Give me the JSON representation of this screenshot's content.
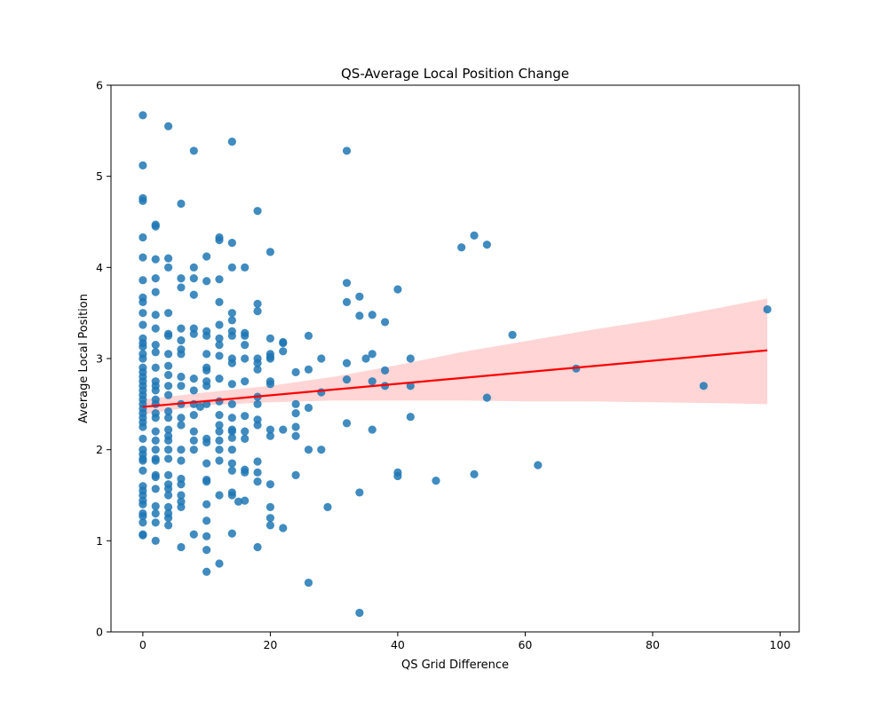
{
  "chart_data": {
    "type": "scatter",
    "title": "QS-Average Local Position Change",
    "xlabel": "QS Grid Difference",
    "ylabel": "Average Local Position",
    "xlim": [
      -5,
      103
    ],
    "ylim": [
      0,
      6
    ],
    "xticks": [
      0,
      20,
      40,
      60,
      80,
      100
    ],
    "yticks": [
      0,
      1,
      2,
      3,
      4,
      5,
      6
    ],
    "grid": false,
    "legend": "none",
    "colors": {
      "points": "#1f77b4",
      "regression": "#ff0000",
      "ci_band": "#ffb3b3"
    },
    "regression": {
      "x": [
        0,
        98
      ],
      "y": [
        2.47,
        3.09
      ]
    },
    "confidence_band": {
      "x": [
        0,
        10,
        20,
        30,
        40,
        50,
        60,
        70,
        80,
        90,
        98
      ],
      "lower": [
        2.39,
        2.49,
        2.52,
        2.54,
        2.54,
        2.54,
        2.53,
        2.53,
        2.52,
        2.51,
        2.5
      ],
      "upper": [
        2.55,
        2.63,
        2.7,
        2.8,
        2.93,
        3.07,
        3.19,
        3.31,
        3.42,
        3.55,
        3.66
      ]
    },
    "points": [
      [
        0,
        5.67
      ],
      [
        0,
        5.12
      ],
      [
        0,
        4.76
      ],
      [
        0,
        4.73
      ],
      [
        0,
        4.33
      ],
      [
        0,
        4.11
      ],
      [
        0,
        3.86
      ],
      [
        0,
        3.67
      ],
      [
        0,
        3.62
      ],
      [
        0,
        3.5
      ],
      [
        0,
        3.37
      ],
      [
        0,
        3.22
      ],
      [
        0,
        3.17
      ],
      [
        0,
        3.13
      ],
      [
        0,
        3.05
      ],
      [
        0,
        3.0
      ],
      [
        0,
        2.9
      ],
      [
        0,
        2.85
      ],
      [
        0,
        2.8
      ],
      [
        0,
        2.75
      ],
      [
        0,
        2.7
      ],
      [
        0,
        2.65
      ],
      [
        0,
        2.6
      ],
      [
        0,
        2.55
      ],
      [
        0,
        2.5
      ],
      [
        0,
        2.45
      ],
      [
        0,
        2.4
      ],
      [
        0,
        2.35
      ],
      [
        0,
        2.3
      ],
      [
        0,
        2.25
      ],
      [
        0,
        2.12
      ],
      [
        0,
        2.0
      ],
      [
        0,
        1.95
      ],
      [
        0,
        1.9
      ],
      [
        0,
        1.88
      ],
      [
        0,
        1.77
      ],
      [
        0,
        1.6
      ],
      [
        0,
        1.55
      ],
      [
        0,
        1.5
      ],
      [
        0,
        1.44
      ],
      [
        0,
        1.4
      ],
      [
        0,
        1.3
      ],
      [
        0,
        1.27
      ],
      [
        0,
        1.2
      ],
      [
        0,
        1.07
      ],
      [
        0,
        1.06
      ],
      [
        2,
        4.47
      ],
      [
        2,
        4.45
      ],
      [
        2,
        4.09
      ],
      [
        2,
        3.88
      ],
      [
        2,
        3.73
      ],
      [
        2,
        3.48
      ],
      [
        2,
        3.33
      ],
      [
        2,
        3.15
      ],
      [
        2,
        3.07
      ],
      [
        2,
        2.9
      ],
      [
        2,
        2.75
      ],
      [
        2,
        2.7
      ],
      [
        2,
        2.65
      ],
      [
        2,
        2.55
      ],
      [
        2,
        2.5
      ],
      [
        2,
        2.4
      ],
      [
        2,
        2.35
      ],
      [
        2,
        2.2
      ],
      [
        2,
        2.1
      ],
      [
        2,
        2.0
      ],
      [
        2,
        1.9
      ],
      [
        2,
        1.88
      ],
      [
        2,
        1.72
      ],
      [
        2,
        1.7
      ],
      [
        2,
        1.57
      ],
      [
        2,
        1.38
      ],
      [
        2,
        1.3
      ],
      [
        2,
        1.2
      ],
      [
        2,
        1.0
      ],
      [
        4,
        5.55
      ],
      [
        4,
        4.1
      ],
      [
        4,
        4.0
      ],
      [
        4,
        3.5
      ],
      [
        4,
        3.27
      ],
      [
        4,
        3.25
      ],
      [
        4,
        3.05
      ],
      [
        4,
        2.92
      ],
      [
        4,
        2.82
      ],
      [
        4,
        2.7
      ],
      [
        4,
        2.6
      ],
      [
        4,
        2.42
      ],
      [
        4,
        2.35
      ],
      [
        4,
        2.22
      ],
      [
        4,
        2.15
      ],
      [
        4,
        2.1
      ],
      [
        4,
        2.0
      ],
      [
        4,
        1.9
      ],
      [
        4,
        1.72
      ],
      [
        4,
        1.62
      ],
      [
        4,
        1.57
      ],
      [
        4,
        1.5
      ],
      [
        4,
        1.37
      ],
      [
        4,
        1.3
      ],
      [
        4,
        1.25
      ],
      [
        4,
        1.17
      ],
      [
        6,
        4.7
      ],
      [
        6,
        3.88
      ],
      [
        6,
        3.78
      ],
      [
        6,
        3.33
      ],
      [
        6,
        3.2
      ],
      [
        6,
        3.1
      ],
      [
        6,
        3.05
      ],
      [
        6,
        2.8
      ],
      [
        6,
        2.7
      ],
      [
        6,
        2.5
      ],
      [
        6,
        2.35
      ],
      [
        6,
        2.27
      ],
      [
        6,
        2.0
      ],
      [
        6,
        1.88
      ],
      [
        6,
        1.68
      ],
      [
        6,
        1.62
      ],
      [
        6,
        1.5
      ],
      [
        6,
        1.43
      ],
      [
        6,
        1.37
      ],
      [
        6,
        0.93
      ],
      [
        8,
        5.28
      ],
      [
        8,
        4.0
      ],
      [
        8,
        3.88
      ],
      [
        8,
        3.7
      ],
      [
        8,
        3.33
      ],
      [
        8,
        3.27
      ],
      [
        8,
        2.78
      ],
      [
        8,
        2.65
      ],
      [
        8,
        2.5
      ],
      [
        8,
        2.38
      ],
      [
        8,
        2.2
      ],
      [
        8,
        2.1
      ],
      [
        8,
        2.0
      ],
      [
        8,
        1.07
      ],
      [
        9,
        2.47
      ],
      [
        10,
        4.12
      ],
      [
        10,
        3.85
      ],
      [
        10,
        3.3
      ],
      [
        10,
        3.25
      ],
      [
        10,
        3.05
      ],
      [
        10,
        2.9
      ],
      [
        10,
        2.87
      ],
      [
        10,
        2.75
      ],
      [
        10,
        2.7
      ],
      [
        10,
        2.5
      ],
      [
        10,
        2.12
      ],
      [
        10,
        2.08
      ],
      [
        10,
        1.85
      ],
      [
        10,
        1.67
      ],
      [
        10,
        1.65
      ],
      [
        10,
        1.4
      ],
      [
        10,
        1.22
      ],
      [
        10,
        1.05
      ],
      [
        10,
        0.9
      ],
      [
        10,
        0.66
      ],
      [
        12,
        4.33
      ],
      [
        12,
        4.3
      ],
      [
        12,
        3.87
      ],
      [
        12,
        3.62
      ],
      [
        12,
        3.37
      ],
      [
        12,
        3.22
      ],
      [
        12,
        3.15
      ],
      [
        12,
        3.03
      ],
      [
        12,
        2.78
      ],
      [
        12,
        2.53
      ],
      [
        12,
        2.38
      ],
      [
        12,
        2.27
      ],
      [
        12,
        2.2
      ],
      [
        12,
        2.1
      ],
      [
        12,
        2.0
      ],
      [
        12,
        1.88
      ],
      [
        12,
        1.5
      ],
      [
        12,
        0.75
      ],
      [
        14,
        5.38
      ],
      [
        14,
        4.27
      ],
      [
        14,
        4.0
      ],
      [
        14,
        3.5
      ],
      [
        14,
        3.42
      ],
      [
        14,
        3.3
      ],
      [
        14,
        3.25
      ],
      [
        14,
        3.0
      ],
      [
        14,
        2.95
      ],
      [
        14,
        2.72
      ],
      [
        14,
        2.5
      ],
      [
        14,
        2.35
      ],
      [
        14,
        2.22
      ],
      [
        14,
        2.2
      ],
      [
        14,
        2.13
      ],
      [
        14,
        2.0
      ],
      [
        14,
        1.85
      ],
      [
        14,
        1.77
      ],
      [
        14,
        1.53
      ],
      [
        14,
        1.5
      ],
      [
        14,
        1.08
      ],
      [
        15,
        1.43
      ],
      [
        16,
        4.0
      ],
      [
        16,
        3.28
      ],
      [
        16,
        3.25
      ],
      [
        16,
        3.15
      ],
      [
        16,
        3.0
      ],
      [
        16,
        2.75
      ],
      [
        16,
        2.37
      ],
      [
        16,
        2.2
      ],
      [
        16,
        2.12
      ],
      [
        16,
        1.78
      ],
      [
        16,
        1.75
      ],
      [
        16,
        1.44
      ],
      [
        18,
        4.62
      ],
      [
        18,
        3.6
      ],
      [
        18,
        3.52
      ],
      [
        18,
        3.0
      ],
      [
        18,
        2.95
      ],
      [
        18,
        2.88
      ],
      [
        18,
        2.58
      ],
      [
        18,
        2.5
      ],
      [
        18,
        2.33
      ],
      [
        18,
        2.27
      ],
      [
        18,
        1.87
      ],
      [
        18,
        1.75
      ],
      [
        18,
        1.65
      ],
      [
        18,
        0.93
      ],
      [
        20,
        4.17
      ],
      [
        20,
        3.22
      ],
      [
        20,
        3.05
      ],
      [
        20,
        3.02
      ],
      [
        20,
        3.0
      ],
      [
        20,
        2.75
      ],
      [
        20,
        2.72
      ],
      [
        20,
        2.22
      ],
      [
        20,
        2.15
      ],
      [
        20,
        1.62
      ],
      [
        20,
        1.37
      ],
      [
        20,
        1.25
      ],
      [
        20,
        1.17
      ],
      [
        22,
        3.18
      ],
      [
        22,
        3.17
      ],
      [
        22,
        3.08
      ],
      [
        22,
        2.22
      ],
      [
        22,
        1.14
      ],
      [
        24,
        2.85
      ],
      [
        24,
        2.5
      ],
      [
        24,
        2.4
      ],
      [
        24,
        2.25
      ],
      [
        24,
        2.15
      ],
      [
        24,
        1.72
      ],
      [
        26,
        3.25
      ],
      [
        26,
        2.88
      ],
      [
        26,
        2.46
      ],
      [
        26,
        2.0
      ],
      [
        26,
        0.54
      ],
      [
        28,
        3.0
      ],
      [
        28,
        2.63
      ],
      [
        28,
        2.0
      ],
      [
        29,
        1.37
      ],
      [
        32,
        5.28
      ],
      [
        32,
        3.83
      ],
      [
        32,
        3.62
      ],
      [
        32,
        2.95
      ],
      [
        32,
        2.77
      ],
      [
        32,
        2.29
      ],
      [
        34,
        3.68
      ],
      [
        34,
        3.47
      ],
      [
        34,
        1.53
      ],
      [
        34,
        0.21
      ],
      [
        35,
        3.0
      ],
      [
        36,
        3.48
      ],
      [
        36,
        3.05
      ],
      [
        36,
        2.75
      ],
      [
        36,
        2.22
      ],
      [
        38,
        3.4
      ],
      [
        38,
        2.87
      ],
      [
        38,
        2.7
      ],
      [
        40,
        3.76
      ],
      [
        40,
        1.75
      ],
      [
        40,
        1.71
      ],
      [
        42,
        3.0
      ],
      [
        42,
        2.7
      ],
      [
        42,
        2.36
      ],
      [
        46,
        1.66
      ],
      [
        50,
        4.22
      ],
      [
        52,
        4.35
      ],
      [
        52,
        1.73
      ],
      [
        54,
        4.25
      ],
      [
        54,
        2.57
      ],
      [
        58,
        3.26
      ],
      [
        62,
        1.83
      ],
      [
        68,
        2.89
      ],
      [
        88,
        2.7
      ],
      [
        98,
        3.54
      ]
    ]
  }
}
